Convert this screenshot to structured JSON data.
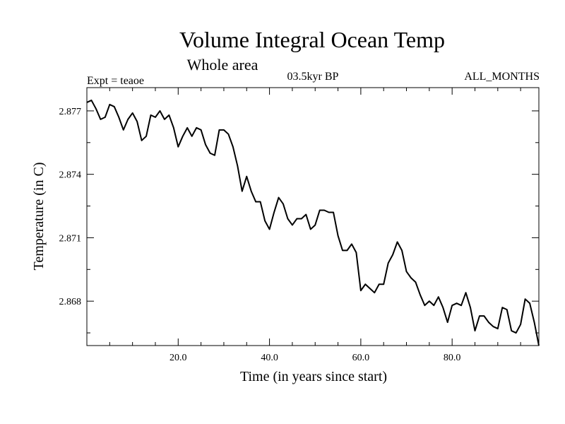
{
  "header": {
    "title": "Volume Integral Ocean Temp",
    "subtitle": "Whole area",
    "experiment": "Expt = teaoe",
    "period": "03.5kyr BP",
    "months": "ALL_MONTHS"
  },
  "chart_data": {
    "type": "line",
    "title": "Volume Integral Ocean Temp",
    "subtitle": "Whole area",
    "xlabel": "Time (in years since start)",
    "ylabel": "Temperature (in C)",
    "xlim": [
      0,
      99
    ],
    "ylim": [
      2.8659,
      2.8781
    ],
    "x_ticks": [
      20,
      40,
      60,
      80
    ],
    "x_tick_labels": [
      "20.0",
      "40.0",
      "60.0",
      "80.0"
    ],
    "y_ticks": [
      2.868,
      2.871,
      2.874,
      2.877
    ],
    "y_tick_labels": [
      "2.868",
      "2.871",
      "2.874",
      "2.877"
    ],
    "grid": false,
    "color": "#000000",
    "series": [
      {
        "name": "Temperature",
        "x": [
          0,
          1,
          2,
          3,
          4,
          5,
          6,
          7,
          8,
          9,
          10,
          11,
          12,
          13,
          14,
          15,
          16,
          17,
          18,
          19,
          20,
          21,
          22,
          23,
          24,
          25,
          26,
          27,
          28,
          29,
          30,
          31,
          32,
          33,
          34,
          35,
          36,
          37,
          38,
          39,
          40,
          41,
          42,
          43,
          44,
          45,
          46,
          47,
          48,
          49,
          50,
          51,
          52,
          53,
          54,
          55,
          56,
          57,
          58,
          59,
          60,
          61,
          62,
          63,
          64,
          65,
          66,
          67,
          68,
          69,
          70,
          71,
          72,
          73,
          74,
          75,
          76,
          77,
          78,
          79,
          80,
          81,
          82,
          83,
          84,
          85,
          86,
          87,
          88,
          89,
          90,
          91,
          92,
          93,
          94,
          95,
          96,
          97,
          98,
          99
        ],
        "values": [
          2.8774,
          2.8775,
          2.8771,
          2.8766,
          2.8767,
          2.8773,
          2.8772,
          2.8767,
          2.8761,
          2.8766,
          2.8769,
          2.8765,
          2.8756,
          2.8758,
          2.8768,
          2.8767,
          2.877,
          2.8766,
          2.8768,
          2.8762,
          2.8753,
          2.8758,
          2.8762,
          2.8758,
          2.8762,
          2.8761,
          2.8754,
          2.875,
          2.8749,
          2.8761,
          2.8761,
          2.8759,
          2.8753,
          2.8744,
          2.8732,
          2.8739,
          2.8732,
          2.8727,
          2.8727,
          2.8718,
          2.8714,
          2.8722,
          2.8729,
          2.8726,
          2.8719,
          2.8716,
          2.8719,
          2.8719,
          2.8721,
          2.8714,
          2.8716,
          2.8723,
          2.8723,
          2.8722,
          2.8722,
          2.8711,
          2.8704,
          2.8704,
          2.8707,
          2.8703,
          2.8685,
          2.8688,
          2.8686,
          2.8684,
          2.8688,
          2.8688,
          2.8698,
          2.8702,
          2.8708,
          2.8704,
          2.8694,
          2.8691,
          2.8689,
          2.8683,
          2.8678,
          2.868,
          2.8678,
          2.8682,
          2.8677,
          2.867,
          2.8678,
          2.8679,
          2.8678,
          2.8684,
          2.8677,
          2.8666,
          2.8673,
          2.8673,
          2.867,
          2.8668,
          2.8667,
          2.8677,
          2.8676,
          2.8666,
          2.8665,
          2.8669,
          2.8681,
          2.8679,
          2.867,
          2.8659
        ]
      }
    ]
  }
}
